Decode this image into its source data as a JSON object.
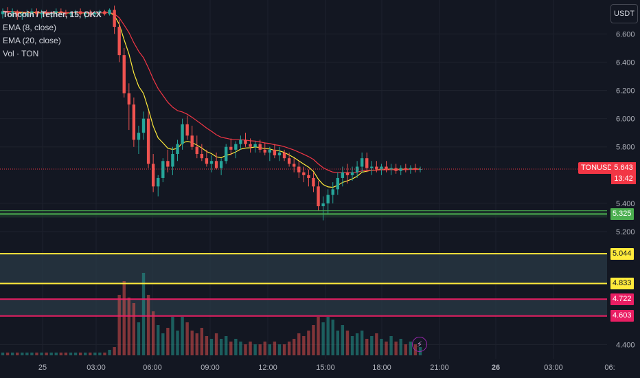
{
  "currency_button": "USDT",
  "legend": {
    "title": "Toncoin / Tether, 15, OKX",
    "ema8": "EMA (8, close)",
    "ema20": "EMA (20, close)",
    "vol": "Vol · TON"
  },
  "last_price": {
    "symbol": "TONUSDT",
    "price": "5.643",
    "countdown": "13:42"
  },
  "levels": [
    {
      "label": "5.325",
      "value": 5.325,
      "color": "#4caf50",
      "text_color": "#ffffff"
    },
    {
      "label": "5.044",
      "value": 5.044,
      "color": "#ffeb3b",
      "text_color": "#131722"
    },
    {
      "label": "4.833",
      "value": 4.833,
      "color": "#ffeb3b",
      "text_color": "#131722"
    },
    {
      "label": "4.722",
      "value": 4.722,
      "color": "#e91e63",
      "text_color": "#ffffff"
    },
    {
      "label": "4.603",
      "value": 4.603,
      "color": "#e91e63",
      "text_color": "#ffffff"
    }
  ],
  "colors": {
    "background": "#131722",
    "up": "#26a69a",
    "down": "#ef5350",
    "ema8": "#ffeb3b",
    "ema20": "#f23645",
    "zone": "#2a3a46"
  },
  "chart_data": {
    "type": "candlestick",
    "y_ticks": [
      6.6,
      6.4,
      6.2,
      6.0,
      5.8,
      5.4,
      5.2,
      4.4
    ],
    "y_tick_labels": [
      "6.600",
      "6.400",
      "6.200",
      "6.000",
      "5.800",
      "5.400",
      "5.200",
      "4.400"
    ],
    "y_range": [
      4.3,
      6.84
    ],
    "x_labels": [
      "25",
      "03:00",
      "06:00",
      "09:00",
      "12:00",
      "15:00",
      "18:00",
      "21:00",
      "26",
      "03:00",
      "06:"
    ],
    "x_label_bold": [
      false,
      false,
      false,
      false,
      false,
      false,
      false,
      false,
      true,
      false,
      false
    ],
    "candles": [
      [
        6.74,
        6.78,
        6.71,
        6.76,
        1
      ],
      [
        6.76,
        6.79,
        6.73,
        6.75,
        1
      ],
      [
        6.75,
        6.78,
        6.72,
        6.76,
        1
      ],
      [
        6.76,
        6.77,
        6.7,
        6.73,
        1
      ],
      [
        6.73,
        6.76,
        6.7,
        6.74,
        1
      ],
      [
        6.74,
        6.77,
        6.72,
        6.75,
        1
      ],
      [
        6.75,
        6.78,
        6.73,
        6.76,
        1
      ],
      [
        6.76,
        6.78,
        6.72,
        6.74,
        1
      ],
      [
        6.74,
        6.77,
        6.71,
        6.75,
        1
      ],
      [
        6.75,
        6.77,
        6.72,
        6.74,
        1
      ],
      [
        6.74,
        6.76,
        6.71,
        6.75,
        1
      ],
      [
        6.75,
        6.78,
        6.73,
        6.76,
        1
      ],
      [
        6.76,
        6.78,
        6.74,
        6.75,
        1
      ],
      [
        6.75,
        6.77,
        6.72,
        6.74,
        1
      ],
      [
        6.74,
        6.76,
        6.72,
        6.75,
        1
      ],
      [
        6.75,
        6.77,
        6.73,
        6.76,
        1
      ],
      [
        6.76,
        6.78,
        6.73,
        6.74,
        1
      ],
      [
        6.74,
        6.76,
        6.71,
        6.75,
        1
      ],
      [
        6.75,
        6.77,
        6.72,
        6.74,
        1
      ],
      [
        6.74,
        6.76,
        6.72,
        6.75,
        1
      ],
      [
        6.75,
        6.77,
        6.73,
        6.76,
        1
      ],
      [
        6.76,
        6.77,
        6.73,
        6.74,
        1
      ],
      [
        6.74,
        6.78,
        6.73,
        6.77,
        2
      ],
      [
        6.77,
        6.8,
        6.6,
        6.65,
        3
      ],
      [
        6.65,
        6.7,
        6.4,
        6.45,
        22
      ],
      [
        6.45,
        6.5,
        6.15,
        6.18,
        27
      ],
      [
        6.18,
        6.25,
        5.92,
        6.1,
        21
      ],
      [
        6.1,
        6.15,
        5.8,
        5.85,
        19
      ],
      [
        5.85,
        5.95,
        5.75,
        5.9,
        12
      ],
      [
        5.9,
        6.05,
        5.85,
        6.0,
        30
      ],
      [
        6.0,
        6.05,
        5.65,
        5.68,
        22
      ],
      [
        5.68,
        5.75,
        5.48,
        5.52,
        16
      ],
      [
        5.52,
        5.6,
        5.45,
        5.58,
        11
      ],
      [
        5.58,
        5.72,
        5.55,
        5.7,
        8
      ],
      [
        5.7,
        5.78,
        5.62,
        5.66,
        10
      ],
      [
        5.66,
        5.8,
        5.6,
        5.75,
        14
      ],
      [
        5.75,
        5.85,
        5.7,
        5.82,
        9
      ],
      [
        5.82,
        6.0,
        5.78,
        5.96,
        14
      ],
      [
        5.96,
        6.02,
        5.85,
        5.88,
        12
      ],
      [
        5.88,
        5.95,
        5.78,
        5.8,
        9
      ],
      [
        5.8,
        5.88,
        5.72,
        5.75,
        8
      ],
      [
        5.75,
        5.82,
        5.7,
        5.72,
        10
      ],
      [
        5.72,
        5.78,
        5.66,
        5.68,
        7
      ],
      [
        5.68,
        5.74,
        5.62,
        5.7,
        6
      ],
      [
        5.7,
        5.76,
        5.64,
        5.65,
        8
      ],
      [
        5.65,
        5.72,
        5.6,
        5.7,
        6
      ],
      [
        5.7,
        5.82,
        5.68,
        5.8,
        7
      ],
      [
        5.8,
        5.86,
        5.74,
        5.78,
        5
      ],
      [
        5.78,
        5.84,
        5.72,
        5.82,
        6
      ],
      [
        5.82,
        5.88,
        5.78,
        5.85,
        5
      ],
      [
        5.85,
        5.9,
        5.8,
        5.82,
        4
      ],
      [
        5.82,
        5.86,
        5.76,
        5.8,
        5
      ],
      [
        5.8,
        5.84,
        5.76,
        5.82,
        4
      ],
      [
        5.82,
        5.85,
        5.76,
        5.78,
        4
      ],
      [
        5.78,
        5.83,
        5.74,
        5.76,
        5
      ],
      [
        5.76,
        5.8,
        5.7,
        5.78,
        4
      ],
      [
        5.78,
        5.82,
        5.72,
        5.74,
        5
      ],
      [
        5.74,
        5.8,
        5.7,
        5.76,
        4
      ],
      [
        5.76,
        5.78,
        5.7,
        5.72,
        4
      ],
      [
        5.72,
        5.76,
        5.66,
        5.68,
        5
      ],
      [
        5.68,
        5.72,
        5.62,
        5.66,
        6
      ],
      [
        5.66,
        5.7,
        5.58,
        5.62,
        8
      ],
      [
        5.62,
        5.66,
        5.55,
        5.6,
        7
      ],
      [
        5.6,
        5.64,
        5.52,
        5.58,
        9
      ],
      [
        5.58,
        5.62,
        5.48,
        5.52,
        11
      ],
      [
        5.52,
        5.56,
        5.35,
        5.38,
        14
      ],
      [
        5.38,
        5.45,
        5.28,
        5.4,
        12
      ],
      [
        5.4,
        5.5,
        5.32,
        5.46,
        14
      ],
      [
        5.46,
        5.55,
        5.4,
        5.5,
        13
      ],
      [
        5.5,
        5.62,
        5.46,
        5.58,
        9
      ],
      [
        5.58,
        5.66,
        5.52,
        5.62,
        11
      ],
      [
        5.62,
        5.68,
        5.54,
        5.6,
        9
      ],
      [
        5.6,
        5.66,
        5.56,
        5.62,
        7
      ],
      [
        5.62,
        5.7,
        5.58,
        5.66,
        8
      ],
      [
        5.66,
        5.76,
        5.62,
        5.72,
        9
      ],
      [
        5.72,
        5.76,
        5.62,
        5.65,
        6
      ],
      [
        5.65,
        5.7,
        5.6,
        5.66,
        7
      ],
      [
        5.66,
        5.7,
        5.62,
        5.64,
        8
      ],
      [
        5.64,
        5.68,
        5.6,
        5.66,
        6
      ],
      [
        5.66,
        5.7,
        5.62,
        5.64,
        5
      ],
      [
        5.64,
        5.68,
        5.6,
        5.65,
        7
      ],
      [
        5.65,
        5.68,
        5.61,
        5.63,
        5
      ],
      [
        5.63,
        5.67,
        5.6,
        5.65,
        6
      ],
      [
        5.65,
        5.68,
        5.62,
        5.64,
        4
      ],
      [
        5.64,
        5.67,
        5.61,
        5.65,
        5
      ],
      [
        5.65,
        5.68,
        5.62,
        5.64,
        4
      ],
      [
        5.64,
        5.66,
        5.62,
        5.643,
        3
      ]
    ],
    "candle_format": "[open, high, low, close, volume]"
  }
}
